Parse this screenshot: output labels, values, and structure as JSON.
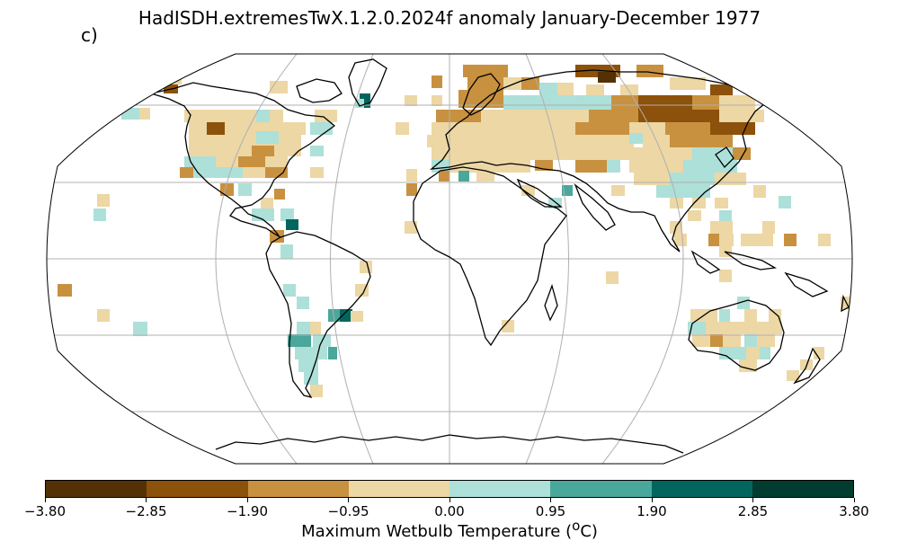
{
  "panel_label": "c)",
  "title": "HadISDH.extremesTwX.1.2.0.2024f anomaly January-December 1977",
  "colorbar": {
    "label": "Maximum Wetbulb Temperature (",
    "label_unit_sup": "o",
    "label_suffix": "C)",
    "ticks": [
      "−3.80",
      "−2.85",
      "−1.90",
      "−0.95",
      "0.00",
      "0.95",
      "1.90",
      "2.85",
      "3.80"
    ],
    "colors": [
      "#543005",
      "#8c510a",
      "#c8913f",
      "#ecd7a5",
      "#ade0d9",
      "#4aa79b",
      "#03665e",
      "#003c30"
    ]
  },
  "map": {
    "projection": "Robinson",
    "gridlines": true,
    "land_outline_color": "#000000",
    "grid_color": "#b0b0b0"
  }
}
